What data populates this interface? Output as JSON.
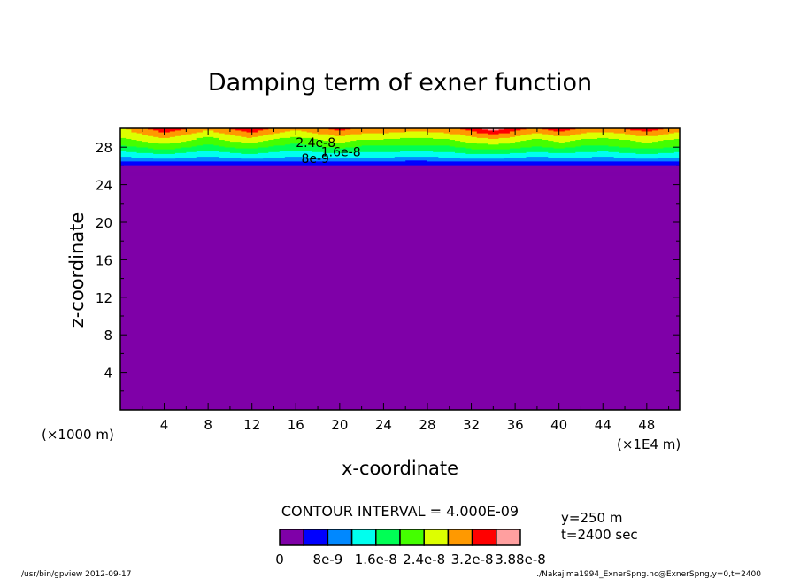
{
  "chart_data": {
    "type": "heatmap",
    "title": "Damping term of exner function",
    "xlabel": "x-coordinate",
    "ylabel": "z-coordinate",
    "x_unit_label": "(×1E4 m)",
    "y_unit_label": "(×1000 m)",
    "xlim": [
      0,
      51
    ],
    "ylim": [
      0,
      30
    ],
    "x_ticks": [
      4,
      8,
      12,
      16,
      20,
      24,
      28,
      32,
      36,
      40,
      44,
      48
    ],
    "y_ticks": [
      4,
      8,
      12,
      16,
      20,
      24,
      28
    ],
    "contour_interval_text": "CONTOUR INTERVAL = 4.000E-09",
    "contour_levels": [
      0,
      4e-09,
      8e-09,
      1.2e-08,
      1.6e-08,
      2e-08,
      2.4e-08,
      2.8e-08,
      3.2e-08,
      3.6e-08,
      4e-08
    ],
    "band_colors": [
      "#7f00a8",
      "#0000ff",
      "#0088ff",
      "#00ffee",
      "#00ff55",
      "#44ff00",
      "#ddff00",
      "#ff9900",
      "#ff0000",
      "#ff9f9f"
    ],
    "colorbar_labels": [
      "0",
      "8e-9",
      "1.6e-8",
      "2.4e-8",
      "3.2e-8",
      "3.88e-8"
    ],
    "contour_labels": [
      {
        "text": "2.4e-8",
        "x": 16,
        "z": 28.5
      },
      {
        "text": "1.6e-8",
        "x": 18.3,
        "z": 27.5
      },
      {
        "text": "8e-9",
        "x": 16.5,
        "z": 26.8
      }
    ],
    "field": {
      "x": [
        0,
        2,
        4,
        6,
        8,
        10,
        12,
        14,
        16,
        18,
        20,
        22,
        24,
        26,
        28,
        30,
        32,
        34,
        36,
        38,
        40,
        42,
        44,
        46,
        48,
        50,
        52
      ],
      "z": [
        25,
        26,
        27,
        28,
        29,
        30
      ],
      "values": [
        [
          0,
          0,
          0,
          0,
          0,
          0,
          0,
          0,
          0,
          0,
          0,
          0,
          0,
          0,
          0,
          0,
          0,
          0,
          0,
          0,
          0,
          0,
          0,
          0,
          0,
          0,
          0
        ],
        [
          3e-09,
          3e-09,
          3e-09,
          3e-09,
          3e-09,
          3e-09,
          3e-09,
          3e-09,
          3e-09,
          3e-09,
          3e-09,
          3e-09,
          3e-09,
          3e-09,
          3e-09,
          3e-09,
          3e-09,
          3e-09,
          3e-09,
          3e-09,
          3e-09,
          3e-09,
          3e-09,
          3e-09,
          3e-09,
          3e-09,
          3e-09
        ],
        [
          1.2e-08,
          1.3e-08,
          1.4e-08,
          1.3e-08,
          1.2e-08,
          1.3e-08,
          1.4e-08,
          1.3e-08,
          1.2e-08,
          1.3e-08,
          1.3e-08,
          1.3e-08,
          1.3e-08,
          1.2e-08,
          1.2e-08,
          1.3e-08,
          1.4e-08,
          1.4e-08,
          1.3e-08,
          1.2e-08,
          1.3e-08,
          1.3e-08,
          1.2e-08,
          1.3e-08,
          1.4e-08,
          1.3e-08,
          1.2e-08
        ],
        [
          1.9e-08,
          2e-08,
          2.2e-08,
          2e-08,
          1.8e-08,
          2e-08,
          2.1e-08,
          1.9e-08,
          1.8e-08,
          1.9e-08,
          2.1e-08,
          1.9e-08,
          1.9e-08,
          1.9e-08,
          1.9e-08,
          1.9e-08,
          2.1e-08,
          2.2e-08,
          2.1e-08,
          1.9e-08,
          2.1e-08,
          1.9e-08,
          1.9e-08,
          2e-08,
          2.1e-08,
          2e-08,
          1.9e-08
        ],
        [
          2.4e-08,
          2.6e-08,
          2.8e-08,
          2.6e-08,
          2.3e-08,
          2.6e-08,
          2.8e-08,
          2.5e-08,
          2.3e-08,
          2.5e-08,
          2.7e-08,
          2.5e-08,
          2.5e-08,
          2.4e-08,
          2.4e-08,
          2.5e-08,
          2.7e-08,
          2.9e-08,
          2.7e-08,
          2.4e-08,
          2.7e-08,
          2.5e-08,
          2.4e-08,
          2.5e-08,
          2.7e-08,
          2.5e-08,
          2.4e-08
        ],
        [
          2.7e-08,
          3.1e-08,
          3.5e-08,
          3.2e-08,
          2.9e-08,
          3.2e-08,
          3.5e-08,
          3.1e-08,
          2.9e-08,
          3.1e-08,
          3.4e-08,
          3.1e-08,
          3.1e-08,
          3e-08,
          3e-08,
          3.1e-08,
          3.4e-08,
          3.8e-08,
          3.4e-08,
          3.1e-08,
          3.5e-08,
          3.1e-08,
          3e-08,
          3.2e-08,
          3.5e-08,
          3.1e-08,
          3e-08
        ]
      ]
    },
    "grid": false,
    "legend": "bottom"
  },
  "info": {
    "y_position": "y=250 m",
    "time": "t=2400 sec"
  },
  "footer": {
    "program": "/usr/bin/gpview   2012-09-17",
    "source": "./Nakajima1994_ExnerSpng.nc@ExnerSpng,y=0,t=2400"
  }
}
